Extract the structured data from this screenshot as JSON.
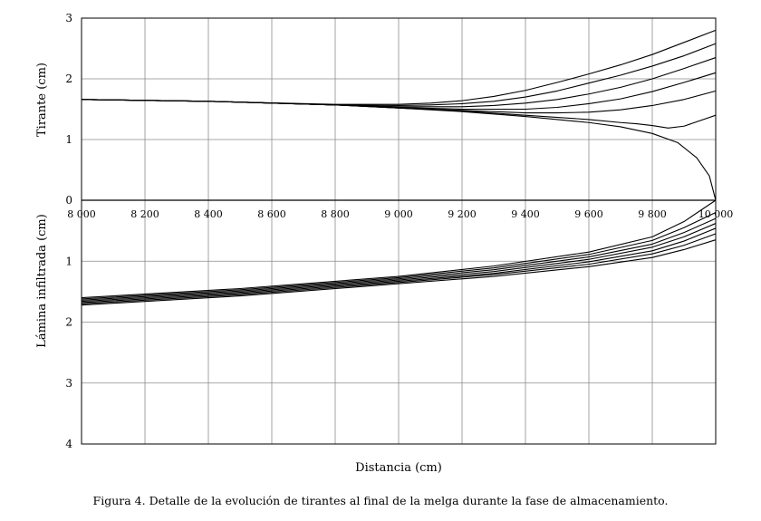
{
  "chart_data": {
    "type": "line",
    "xlabel": "Distancia (cm)",
    "ylabel_top": "Tirante (cm)",
    "ylabel_bottom": "Lámina infiltrada (cm)",
    "caption": "Figura 4. Detalle de la evolución de tirantes al final de la melga durante la fase de almacenamiento.",
    "xlim": [
      8000,
      10000
    ],
    "x_ticks": [
      8000,
      8200,
      8400,
      8600,
      8800,
      9000,
      9200,
      9400,
      9600,
      9800,
      10000
    ],
    "x_tick_labels": [
      "8 000",
      "8 200",
      "8 400",
      "8 600",
      "8 800",
      "9 000",
      "9 200",
      "9 400",
      "9 600",
      "9 800",
      "10 000"
    ],
    "upper_panel": {
      "ylim": [
        0,
        3
      ],
      "y_ticks": [
        0,
        1,
        2,
        3
      ],
      "y_tick_labels": [
        "0",
        "1",
        "2",
        "3"
      ],
      "series": [
        {
          "x": [
            8000,
            8400,
            8800,
            9000,
            9100,
            9200,
            9300,
            9400,
            9500,
            9600,
            9700,
            9800,
            9900,
            10000
          ],
          "y": [
            1.66,
            1.63,
            1.58,
            1.58,
            1.6,
            1.64,
            1.71,
            1.81,
            1.94,
            2.08,
            2.23,
            2.4,
            2.6,
            2.8
          ]
        },
        {
          "x": [
            8000,
            8400,
            8800,
            9000,
            9100,
            9200,
            9300,
            9400,
            9500,
            9600,
            9700,
            9800,
            9900,
            10000
          ],
          "y": [
            1.66,
            1.63,
            1.57,
            1.56,
            1.57,
            1.59,
            1.63,
            1.7,
            1.8,
            1.93,
            2.06,
            2.21,
            2.38,
            2.58
          ]
        },
        {
          "x": [
            8000,
            8400,
            8800,
            9000,
            9200,
            9300,
            9400,
            9500,
            9600,
            9700,
            9800,
            9900,
            10000
          ],
          "y": [
            1.66,
            1.63,
            1.57,
            1.54,
            1.54,
            1.56,
            1.6,
            1.66,
            1.75,
            1.86,
            2.0,
            2.17,
            2.35
          ]
        },
        {
          "x": [
            8000,
            8400,
            8800,
            9000,
            9200,
            9400,
            9500,
            9600,
            9700,
            9800,
            9900,
            10000
          ],
          "y": [
            1.66,
            1.63,
            1.57,
            1.53,
            1.5,
            1.5,
            1.53,
            1.59,
            1.67,
            1.79,
            1.94,
            2.1
          ]
        },
        {
          "x": [
            8000,
            8400,
            8800,
            9000,
            9200,
            9400,
            9500,
            9600,
            9700,
            9800,
            9900,
            10000
          ],
          "y": [
            1.66,
            1.63,
            1.57,
            1.52,
            1.48,
            1.44,
            1.44,
            1.45,
            1.49,
            1.56,
            1.66,
            1.8
          ]
        },
        {
          "x": [
            8000,
            8400,
            8800,
            9000,
            9200,
            9400,
            9600,
            9700,
            9750,
            9800,
            9850,
            9900,
            10000
          ],
          "y": [
            1.66,
            1.63,
            1.57,
            1.52,
            1.47,
            1.4,
            1.33,
            1.28,
            1.26,
            1.23,
            1.19,
            1.22,
            1.4
          ]
        },
        {
          "x": [
            8000,
            8400,
            8800,
            9000,
            9200,
            9400,
            9600,
            9700,
            9800,
            9880,
            9940,
            9980,
            10000
          ],
          "y": [
            1.66,
            1.63,
            1.57,
            1.52,
            1.46,
            1.38,
            1.28,
            1.21,
            1.1,
            0.95,
            0.7,
            0.4,
            0.0
          ]
        }
      ]
    },
    "lower_panel": {
      "ylim": [
        0,
        4
      ],
      "y_inverted": true,
      "y_ticks": [
        1,
        2,
        3,
        4
      ],
      "y_tick_labels": [
        "1",
        "2",
        "3",
        "4"
      ],
      "series": [
        {
          "x": [
            8000,
            8500,
            9000,
            9300,
            9600,
            9800,
            9900,
            10000
          ],
          "y": [
            1.6,
            1.45,
            1.25,
            1.08,
            0.85,
            0.6,
            0.35,
            0.0
          ]
        },
        {
          "x": [
            8000,
            8500,
            9000,
            9300,
            9600,
            9800,
            9900,
            10000
          ],
          "y": [
            1.62,
            1.47,
            1.27,
            1.11,
            0.89,
            0.66,
            0.45,
            0.2
          ]
        },
        {
          "x": [
            8000,
            8500,
            9000,
            9300,
            9600,
            9800,
            9900,
            10000
          ],
          "y": [
            1.64,
            1.49,
            1.29,
            1.14,
            0.93,
            0.72,
            0.53,
            0.3
          ]
        },
        {
          "x": [
            8000,
            8500,
            9000,
            9300,
            9600,
            9800,
            9900,
            10000
          ],
          "y": [
            1.66,
            1.51,
            1.31,
            1.17,
            0.97,
            0.77,
            0.6,
            0.38
          ]
        },
        {
          "x": [
            8000,
            8500,
            9000,
            9300,
            9600,
            9800,
            9900,
            10000
          ],
          "y": [
            1.68,
            1.53,
            1.33,
            1.2,
            1.01,
            0.83,
            0.67,
            0.46
          ]
        },
        {
          "x": [
            8000,
            8500,
            9000,
            9300,
            9600,
            9800,
            9900,
            10000
          ],
          "y": [
            1.7,
            1.55,
            1.35,
            1.22,
            1.05,
            0.88,
            0.74,
            0.55
          ]
        },
        {
          "x": [
            8000,
            8500,
            9000,
            9300,
            9600,
            9800,
            9900,
            10000
          ],
          "y": [
            1.72,
            1.57,
            1.37,
            1.25,
            1.09,
            0.94,
            0.81,
            0.65
          ]
        }
      ]
    },
    "grid": true,
    "colors": {
      "line": "#000000",
      "grid": "#8c8c8c",
      "axis": "#000000"
    }
  }
}
